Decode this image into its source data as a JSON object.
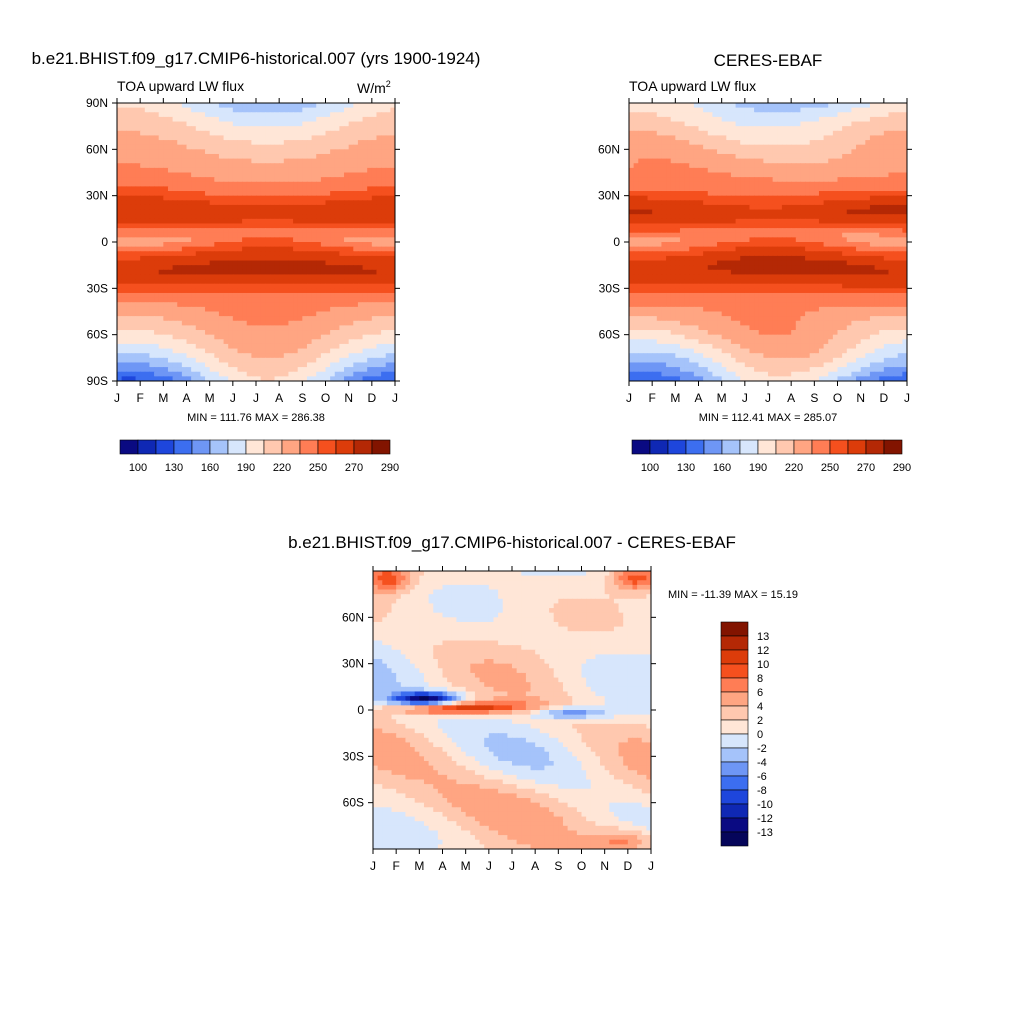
{
  "chart_data": [
    {
      "type": "heatmap",
      "title": "b.e21.BHIST.f09_g17.CMIP6-historical.007 (yrs 1900-1924)",
      "left_label": "TOA upward LW flux",
      "right_label": "W/m",
      "right_label_superscript": "2",
      "x_ticks": [
        "J",
        "F",
        "M",
        "A",
        "M",
        "J",
        "J",
        "A",
        "S",
        "O",
        "N",
        "D",
        "J"
      ],
      "y_ticks": [
        "90N",
        "60N",
        "30N",
        "0",
        "30S",
        "60S",
        "90S"
      ],
      "stats": "MIN = 111.76 MAX = 286.38",
      "colorbar_labels": [
        "100",
        "130",
        "160",
        "190",
        "220",
        "250",
        "270",
        "290"
      ],
      "colorbar_colors": [
        "#0a0a82",
        "#0f28b4",
        "#1e46dc",
        "#3c6ef0",
        "#6e96f5",
        "#a5c3fa",
        "#d7e6fc",
        "#ffe6d7",
        "#ffc8af",
        "#ffa582",
        "#ff7d55",
        "#f5501e",
        "#dc3c0a",
        "#b42805",
        "#821400"
      ],
      "range": [
        100,
        300
      ]
    },
    {
      "type": "heatmap",
      "title": "CERES-EBAF",
      "left_label": "TOA upward LW flux",
      "x_ticks": [
        "J",
        "F",
        "M",
        "A",
        "M",
        "J",
        "J",
        "A",
        "S",
        "O",
        "N",
        "D",
        "J"
      ],
      "y_ticks": [
        "60N",
        "30N",
        "0",
        "30S",
        "60S"
      ],
      "stats": "MIN = 112.41 MAX = 285.07",
      "colorbar_labels": [
        "100",
        "130",
        "160",
        "190",
        "220",
        "250",
        "270",
        "290"
      ],
      "colorbar_colors": [
        "#0a0a82",
        "#0f28b4",
        "#1e46dc",
        "#3c6ef0",
        "#6e96f5",
        "#a5c3fa",
        "#d7e6fc",
        "#ffe6d7",
        "#ffc8af",
        "#ffa582",
        "#ff7d55",
        "#f5501e",
        "#dc3c0a",
        "#b42805",
        "#821400"
      ],
      "range": [
        100,
        300
      ]
    },
    {
      "type": "heatmap",
      "title": "b.e21.BHIST.f09_g17.CMIP6-historical.007 - CERES-EBAF",
      "x_ticks": [
        "J",
        "F",
        "M",
        "A",
        "M",
        "J",
        "J",
        "A",
        "S",
        "O",
        "N",
        "D",
        "J"
      ],
      "y_ticks": [
        "60N",
        "30N",
        "0",
        "30S",
        "60S"
      ],
      "stats": "MIN = -11.39 MAX =  15.19",
      "colorbar_labels": [
        "13",
        "12",
        "10",
        "8",
        "6",
        "4",
        "2",
        "0",
        "-2",
        "-4",
        "-6",
        "-8",
        "-10",
        "-12",
        "-13"
      ],
      "colorbar_colors": [
        "#821400",
        "#b42805",
        "#dc3c0a",
        "#f5501e",
        "#ff7d55",
        "#ffa582",
        "#ffc8af",
        "#ffe6d7",
        "#d7e6fc",
        "#a5c3fa",
        "#6e96f5",
        "#3c6ef0",
        "#1e46dc",
        "#0f28b4",
        "#0a0a82",
        "#05055a"
      ],
      "range": [
        -14,
        16
      ]
    }
  ]
}
